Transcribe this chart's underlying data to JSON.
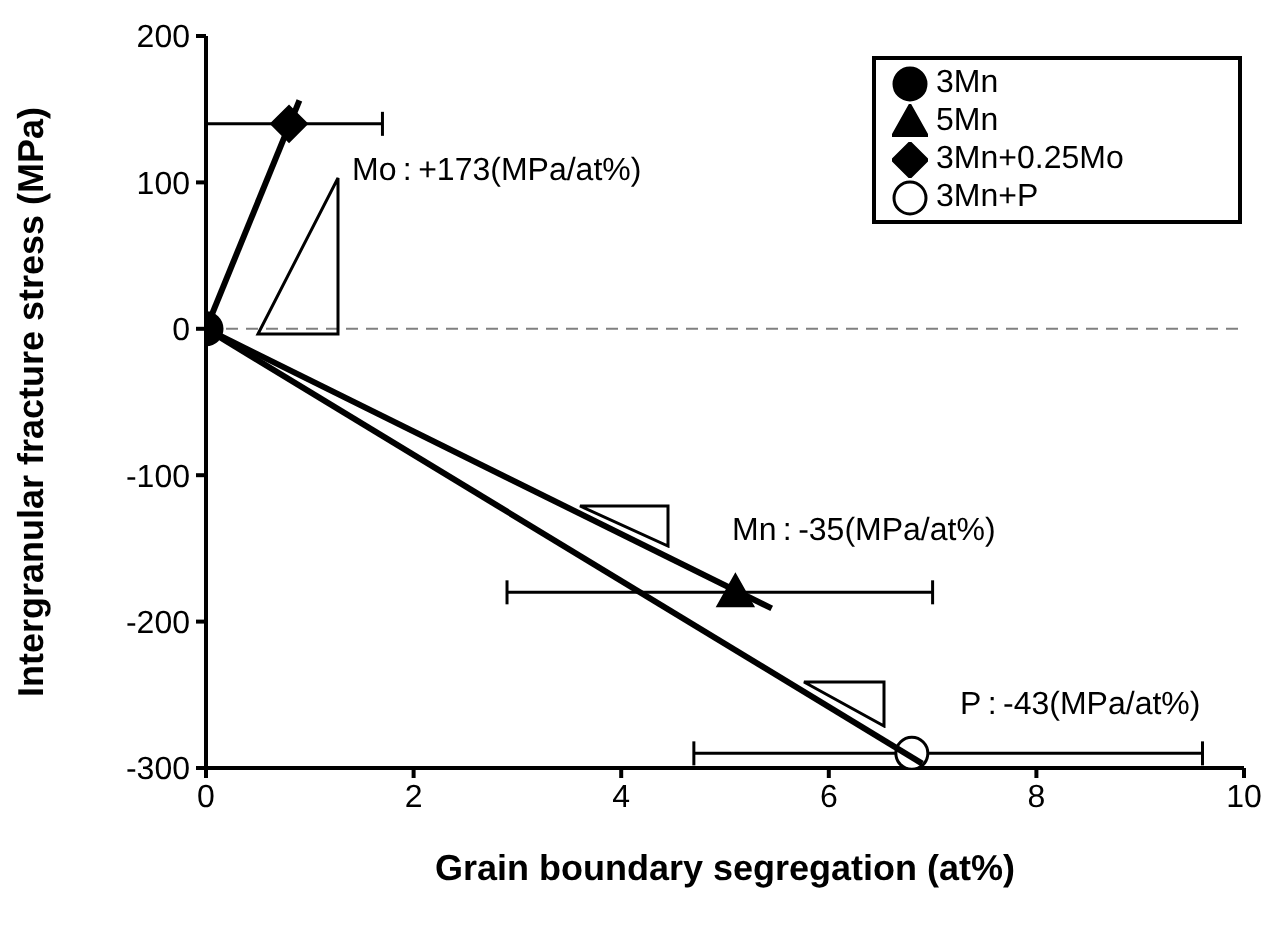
{
  "chart_data": {
    "type": "scatter",
    "xlabel": "Grain boundary segregation (at%)",
    "ylabel": "Intergranular fracture stress (MPa)",
    "xlim": [
      0,
      10
    ],
    "xticks": [
      0,
      2,
      4,
      6,
      8,
      10
    ],
    "ylim": [
      -300,
      200
    ],
    "yticks": [
      -300,
      -200,
      -100,
      0,
      100,
      200
    ],
    "grid": false,
    "legend": "top right",
    "series": [
      {
        "name": "3Mn",
        "marker": "circle",
        "color": "#000000",
        "x": [
          0
        ],
        "values": [
          0
        ]
      },
      {
        "name": "5Mn",
        "marker": "triangle",
        "color": "#000000",
        "x": [
          5.1
        ],
        "values": [
          -180
        ],
        "xerrors": [
          [
            2.9,
            7.0
          ]
        ]
      },
      {
        "name": "3Mn+0.25Mo",
        "marker": "diamond",
        "color": "#000000",
        "x": [
          0.8
        ],
        "values": [
          140
        ],
        "xerrors": [
          [
            0,
            1.7
          ]
        ]
      },
      {
        "name": "3Mn+P",
        "marker": "circle",
        "color": "#ffffff",
        "x": [
          6.8
        ],
        "values": [
          -290
        ],
        "xerrors": [
          [
            4.7,
            9.6
          ]
        ]
      },
      {
        "type": "line",
        "marker": "none",
        "color": "#000000",
        "x": [
          0,
          0.9
        ],
        "values": [
          0,
          156
        ]
      },
      {
        "type": "line",
        "marker": "none",
        "color": "#000000",
        "x": [
          0,
          5.45
        ],
        "values": [
          0,
          -191
        ]
      },
      {
        "type": "line",
        "marker": "none",
        "color": "#000000",
        "x": [
          0,
          6.9
        ],
        "values": [
          0,
          -297
        ]
      }
    ],
    "ref_lines": [
      {
        "axis": "y",
        "value": 0,
        "color": "#808080",
        "line_style": "dashed"
      }
    ],
    "annotations": [
      "Mo : +173(MPa/at%)",
      "Mn : -35(MPa/at%)",
      "P : -43(MPa/at%)"
    ]
  }
}
